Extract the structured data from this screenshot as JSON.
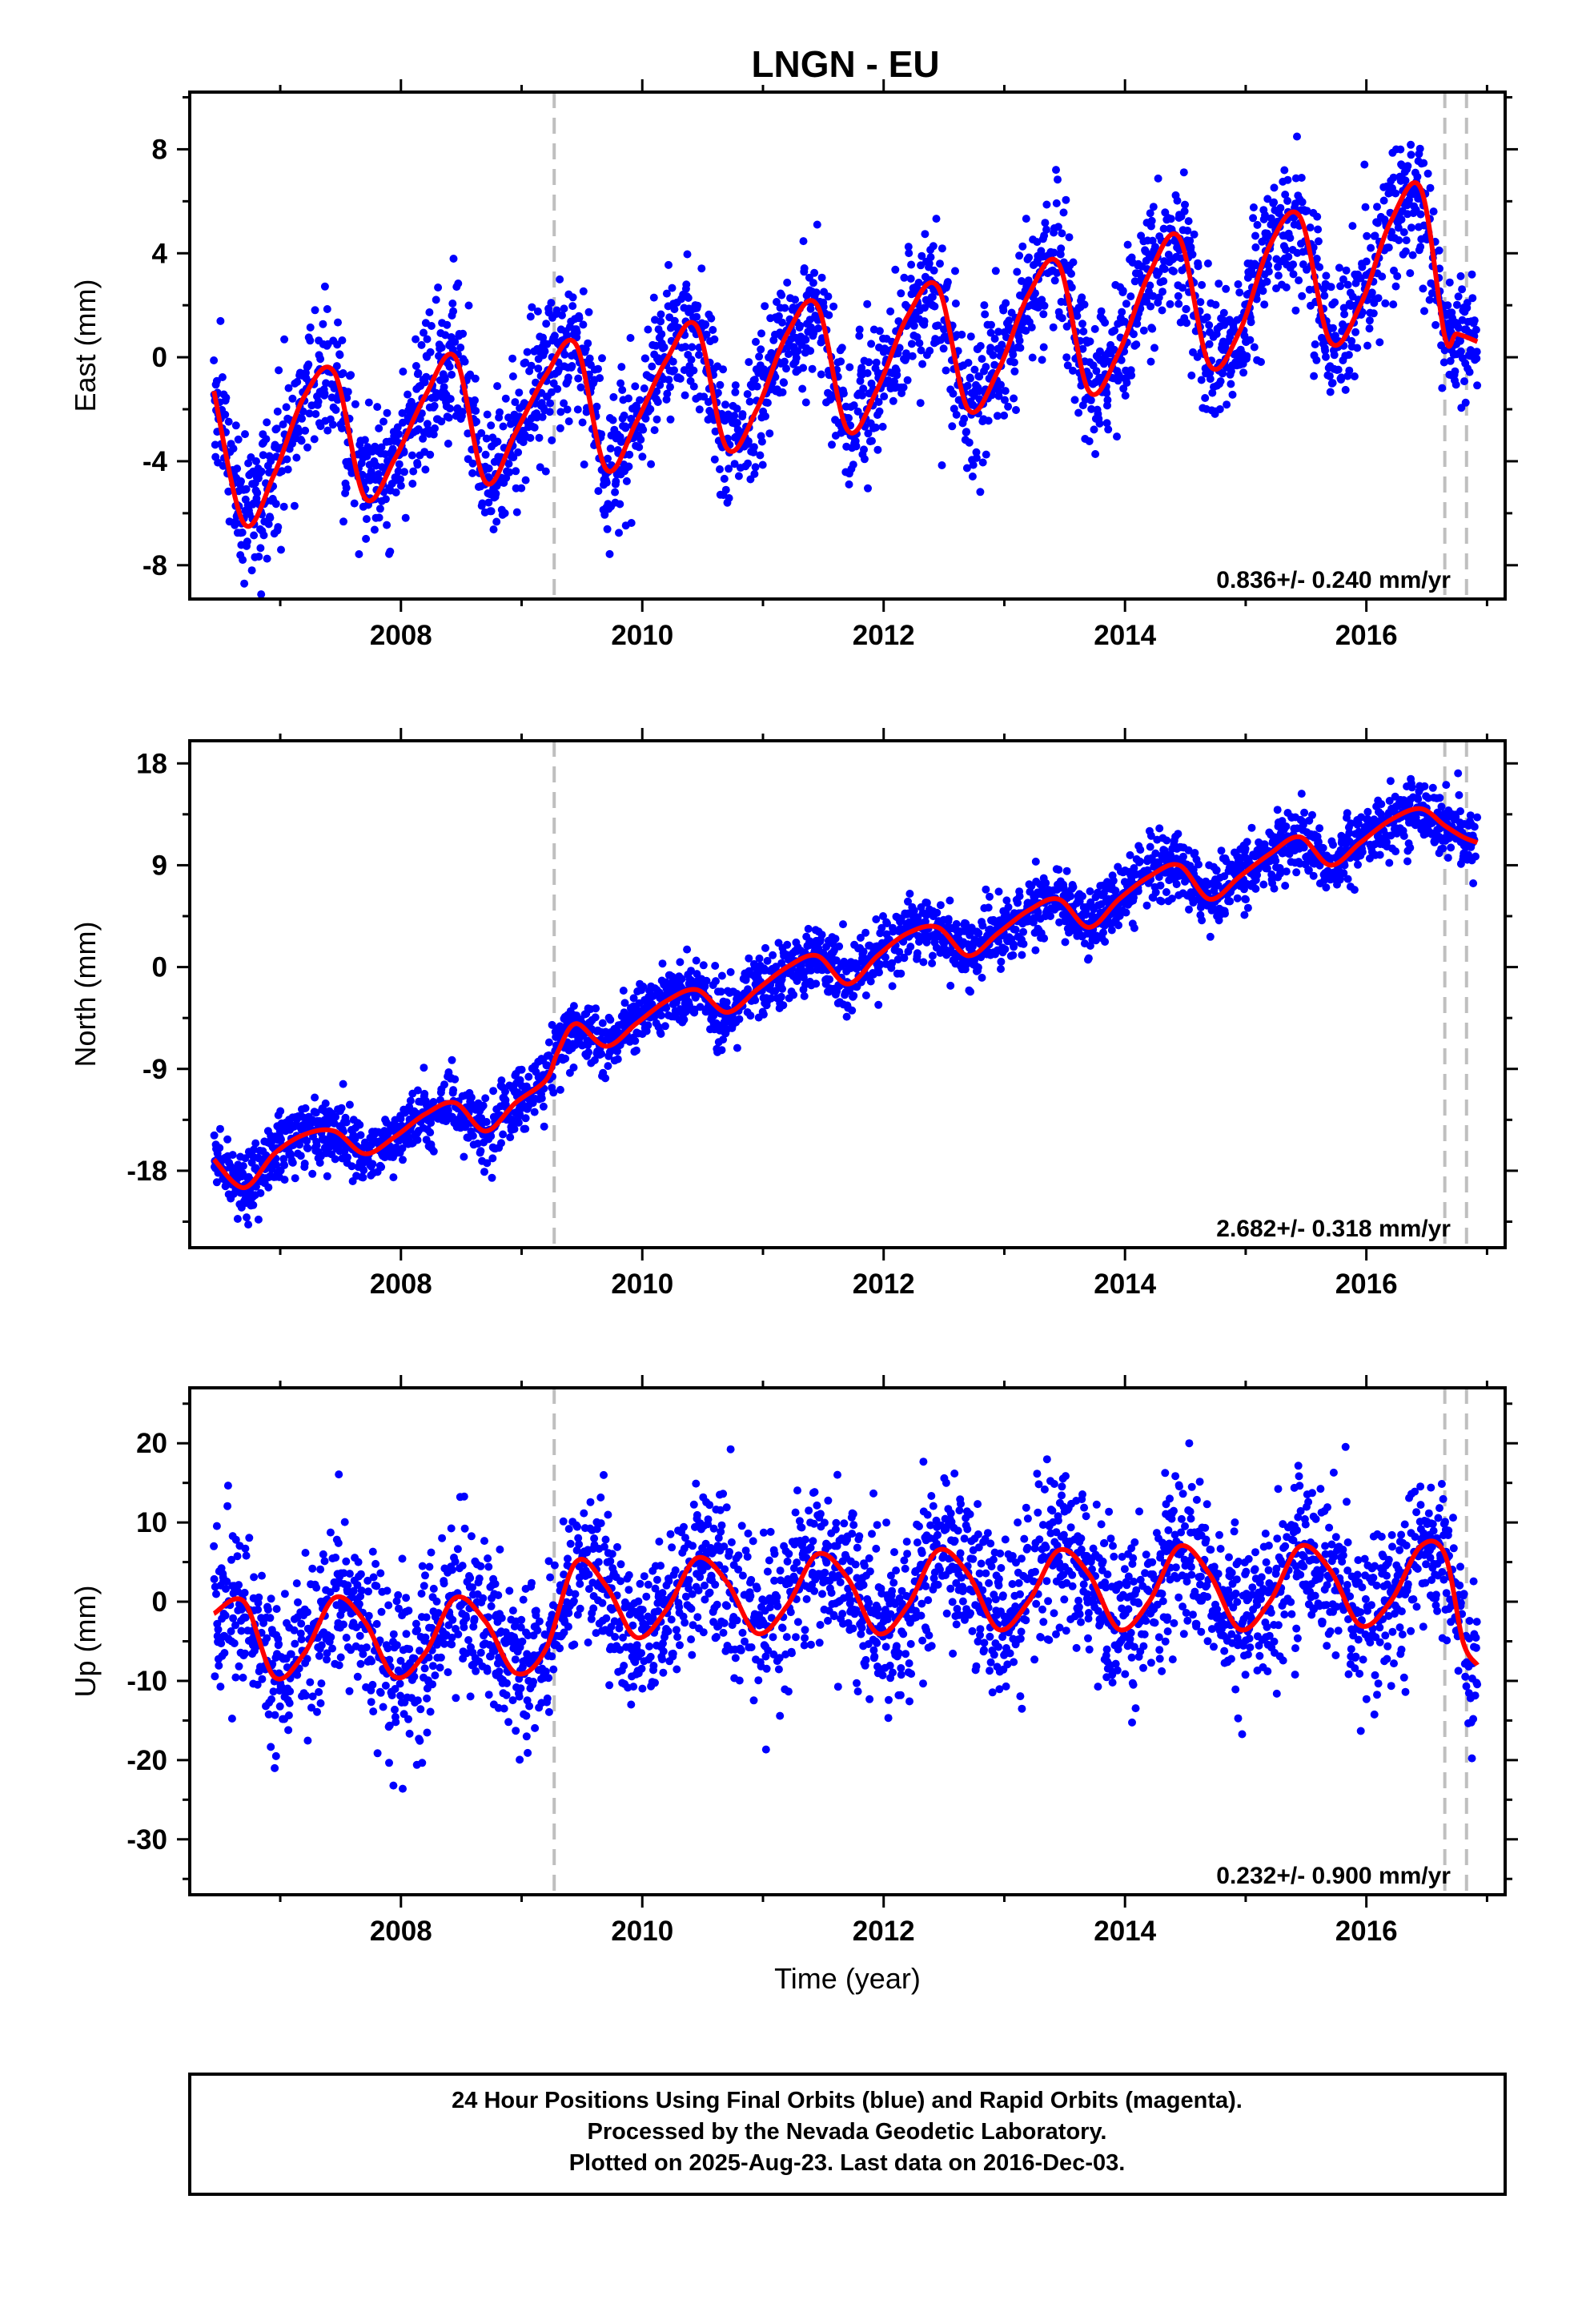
{
  "title": "LNGN - EU",
  "colors": {
    "final_orbits": "#0000ff",
    "model": "#ff0000",
    "event_line": "#bfbfbf",
    "frame": "#000000"
  },
  "footer": {
    "line1": "24 Hour Positions Using Final Orbits (blue) and Rapid Orbits (magenta).",
    "line2": "Processed by the Nevada Geodetic Laboratory.",
    "line3": "Plotted on 2025-Aug-23. Last data on 2016-Dec-03."
  },
  "chart_data": [
    {
      "type": "scatter",
      "component": "east",
      "ylabel": "East (mm)",
      "xlabel": "",
      "xlim": [
        2006.25,
        2017.15
      ],
      "ylim": [
        -9.3,
        10.2
      ],
      "xticks": [
        "2008",
        "2010",
        "2012",
        "2014",
        "2016"
      ],
      "yticks": [
        "8",
        "4",
        "0",
        "-4",
        "-8"
      ],
      "rate_label": "0.836+/- 0.240 mm/yr",
      "event_lines": [
        2009.27,
        2016.65,
        2016.83
      ],
      "series": [
        {
          "kind": "daily_positions",
          "color": "#0000ff",
          "x_start": 2006.45,
          "x_end": 2016.92,
          "approx_trend_mm_per_yr": 0.836,
          "annual_amplitude_mm": 3.0,
          "scatter_mm": 1.3,
          "approx_value_at_start_mm": -2.5
        },
        {
          "kind": "model_fit",
          "color": "#ff0000",
          "x": [
            2006.45,
            2006.7,
            2006.95,
            2007.2,
            2007.45,
            2007.7,
            2007.95,
            2008.2,
            2008.45,
            2008.7,
            2008.95,
            2009.2,
            2009.45,
            2009.7,
            2009.95,
            2010.2,
            2010.45,
            2010.7,
            2010.95,
            2011.2,
            2011.45,
            2011.7,
            2011.95,
            2012.2,
            2012.45,
            2012.7,
            2012.95,
            2013.2,
            2013.45,
            2013.7,
            2013.95,
            2014.2,
            2014.45,
            2014.7,
            2014.95,
            2015.2,
            2015.45,
            2015.7,
            2015.95,
            2016.2,
            2016.45,
            2016.65,
            2016.75,
            2016.92
          ],
          "y": [
            -1.3,
            -6.4,
            -4.5,
            -1.5,
            -0.6,
            -5.4,
            -3.9,
            -1.5,
            0.0,
            -4.8,
            -2.9,
            -0.7,
            0.5,
            -4.3,
            -2.5,
            -0.1,
            1.2,
            -3.5,
            -2.0,
            0.9,
            2.0,
            -2.8,
            -1.2,
            1.6,
            2.7,
            -2.0,
            -0.5,
            2.4,
            3.6,
            -1.3,
            0.2,
            3.2,
            4.6,
            -0.3,
            1.0,
            4.3,
            5.4,
            0.6,
            2.0,
            5.2,
            6.5,
            0.8,
            0.9,
            0.6
          ]
        }
      ]
    },
    {
      "type": "scatter",
      "component": "north",
      "ylabel": "North (mm)",
      "xlabel": "",
      "xlim": [
        2006.25,
        2017.15
      ],
      "ylim": [
        -24.8,
        20.0
      ],
      "xticks": [
        "2008",
        "2010",
        "2012",
        "2014",
        "2016"
      ],
      "yticks": [
        "18",
        "9",
        "0",
        "-9",
        "-18"
      ],
      "rate_label": "2.682+/- 0.318 mm/yr",
      "event_lines": [
        2009.27,
        2016.65,
        2016.83
      ],
      "series": [
        {
          "kind": "daily_positions",
          "color": "#0000ff",
          "x_start": 2006.45,
          "x_end": 2016.92,
          "approx_trend_mm_per_yr": 2.682,
          "annual_amplitude_mm": 1.5,
          "scatter_mm": 1.4,
          "approx_value_at_start_mm": -17.0
        },
        {
          "kind": "model_fit",
          "color": "#ff0000",
          "x": [
            2006.45,
            2006.7,
            2006.95,
            2007.2,
            2007.45,
            2007.7,
            2007.95,
            2008.2,
            2008.45,
            2008.7,
            2008.95,
            2009.2,
            2009.3,
            2009.45,
            2009.7,
            2009.95,
            2010.2,
            2010.45,
            2010.7,
            2010.95,
            2011.2,
            2011.45,
            2011.7,
            2011.95,
            2012.2,
            2012.45,
            2012.7,
            2012.95,
            2013.2,
            2013.45,
            2013.7,
            2013.95,
            2014.2,
            2014.45,
            2014.7,
            2014.95,
            2015.2,
            2015.45,
            2015.7,
            2015.95,
            2016.2,
            2016.45,
            2016.65,
            2016.8,
            2016.92
          ],
          "y": [
            -17.0,
            -19.5,
            -16.5,
            -14.8,
            -14.5,
            -16.5,
            -15.0,
            -13.0,
            -12.0,
            -14.5,
            -12.0,
            -10.0,
            -7.5,
            -5.0,
            -7.0,
            -5.0,
            -3.0,
            -2.0,
            -4.0,
            -2.0,
            0.0,
            1.0,
            -1.5,
            1.0,
            3.0,
            3.5,
            1.0,
            3.0,
            5.0,
            6.0,
            3.5,
            6.0,
            8.0,
            9.0,
            6.0,
            8.0,
            10.0,
            11.5,
            9.0,
            11.0,
            13.0,
            14.0,
            12.5,
            11.5,
            11.0
          ]
        }
      ]
    },
    {
      "type": "scatter",
      "component": "up",
      "ylabel": "Up (mm)",
      "xlabel": "Time (year)",
      "xlim": [
        2006.25,
        2017.15
      ],
      "ylim": [
        -37.0,
        27.0
      ],
      "xticks": [
        "2008",
        "2010",
        "2012",
        "2014",
        "2016"
      ],
      "yticks": [
        "20",
        "10",
        "0",
        "-10",
        "-20",
        "-30"
      ],
      "rate_label": "0.232+/- 0.900 mm/yr",
      "event_lines": [
        2009.27,
        2016.65,
        2016.83
      ],
      "series": [
        {
          "kind": "daily_positions",
          "color": "#0000ff",
          "x_start": 2006.45,
          "x_end": 2016.92,
          "approx_trend_mm_per_yr": 0.232,
          "annual_amplitude_mm": 7.0,
          "scatter_mm": 5.0,
          "approx_value_at_start_mm": -2.0
        },
        {
          "kind": "model_fit",
          "color": "#ff0000",
          "x": [
            2006.45,
            2006.7,
            2006.95,
            2007.2,
            2007.45,
            2007.7,
            2007.95,
            2008.2,
            2008.45,
            2008.7,
            2008.95,
            2009.2,
            2009.45,
            2009.7,
            2009.95,
            2010.2,
            2010.45,
            2010.7,
            2010.95,
            2011.2,
            2011.45,
            2011.7,
            2011.95,
            2012.2,
            2012.45,
            2012.7,
            2012.95,
            2013.2,
            2013.45,
            2013.7,
            2013.95,
            2014.2,
            2014.45,
            2014.7,
            2014.95,
            2015.2,
            2015.45,
            2015.7,
            2015.95,
            2016.2,
            2016.45,
            2016.65,
            2016.8,
            2016.92
          ],
          "y": [
            -1.5,
            0.0,
            -9.5,
            -6.5,
            0.5,
            -2.5,
            -9.5,
            -6.5,
            0.5,
            -2.5,
            -9.0,
            -6.0,
            5.0,
            2.0,
            -4.5,
            -1.0,
            5.5,
            2.5,
            -4.0,
            -0.5,
            6.0,
            3.0,
            -4.0,
            -0.5,
            6.5,
            3.5,
            -3.5,
            0.0,
            6.5,
            3.5,
            -3.5,
            0.0,
            7.0,
            3.5,
            -3.5,
            0.0,
            7.0,
            4.0,
            -3.0,
            0.0,
            7.0,
            6.0,
            -5.0,
            -8.0
          ]
        }
      ]
    }
  ]
}
